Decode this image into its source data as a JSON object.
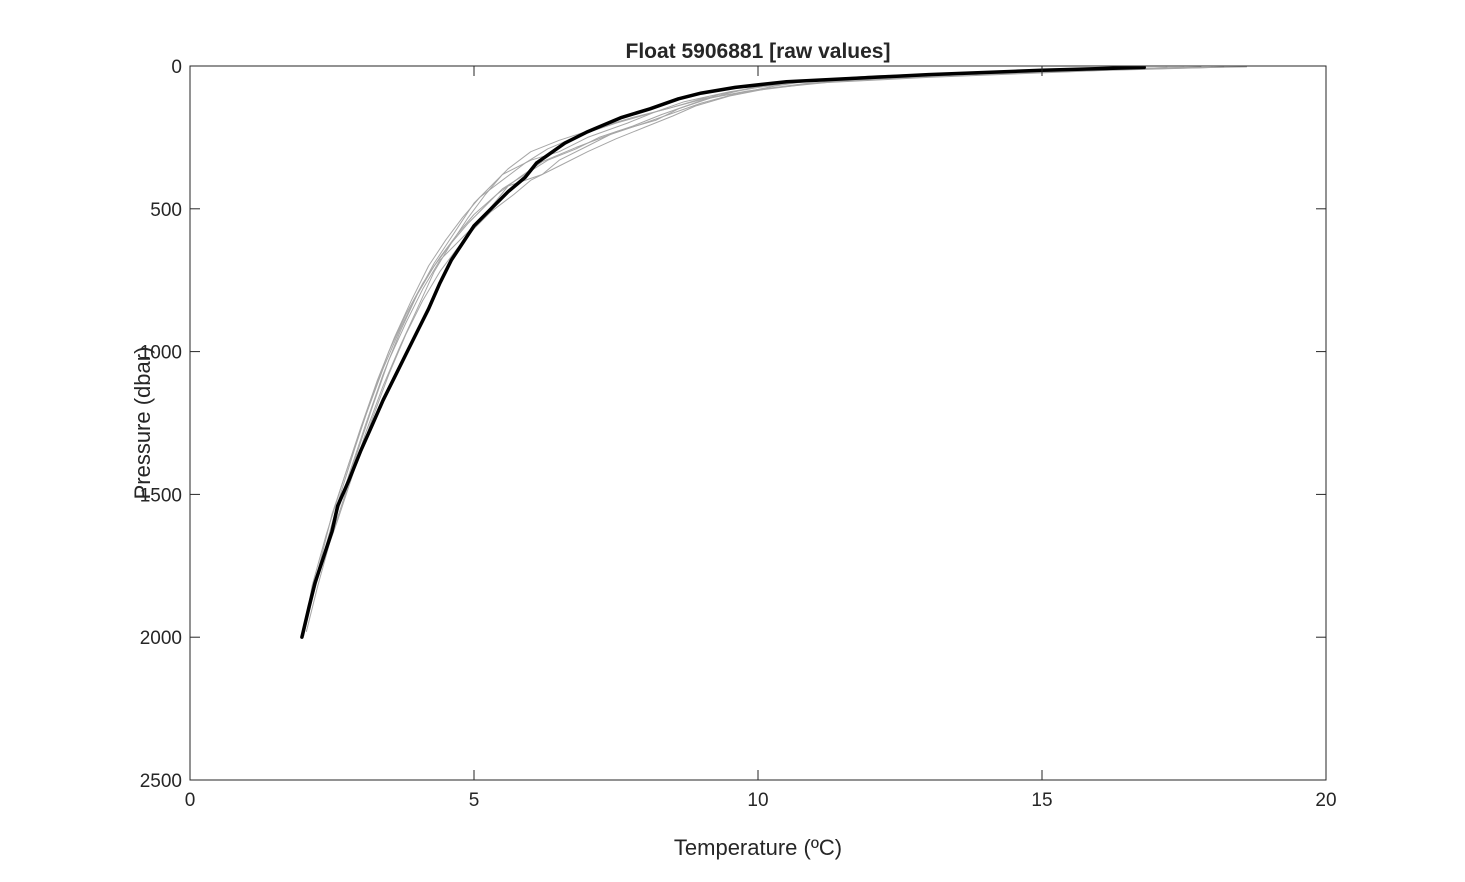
{
  "chart_data": {
    "type": "line",
    "title": "Float 5906881  [raw values]",
    "xlabel": "Temperature  (ºC)",
    "ylabel": "Pressure (dbar)",
    "xlim": [
      0,
      20
    ],
    "ylim": [
      0,
      2500
    ],
    "y_reversed": true,
    "grid": false,
    "legend": "none",
    "x_ticks": [
      0,
      5,
      10,
      15,
      20
    ],
    "y_ticks": [
      0,
      500,
      1000,
      1500,
      2000,
      2500
    ],
    "x_tick_labels": [
      "0",
      "5",
      "10",
      "15",
      "20"
    ],
    "y_tick_labels": [
      "0",
      "500",
      "1000",
      "1500",
      "2000",
      "2500"
    ],
    "colors": {
      "background_profiles": "#a6a6a6",
      "highlight_profile": "#000000",
      "axes": "#262626"
    },
    "series": [
      {
        "role": "highlight",
        "x": [
          16.8,
          15.0,
          13.0,
          11.5,
          10.5,
          9.6,
          9.0,
          8.6,
          8.1,
          7.6,
          7.0,
          6.6,
          6.1,
          5.9,
          5.6,
          5.3,
          5.0,
          4.8,
          4.6,
          4.4,
          4.2,
          4.0,
          3.8,
          3.6,
          3.4,
          3.2,
          3.0,
          2.8,
          2.6,
          2.5,
          2.35,
          2.2,
          2.1,
          1.97
        ],
        "y": [
          5,
          15,
          30,
          45,
          55,
          75,
          95,
          115,
          150,
          180,
          230,
          270,
          340,
          390,
          440,
          500,
          560,
          620,
          680,
          760,
          850,
          930,
          1010,
          1090,
          1170,
          1260,
          1350,
          1450,
          1540,
          1630,
          1720,
          1810,
          1890,
          2000
        ]
      },
      {
        "role": "background",
        "x": [
          18.0,
          15.0,
          12.0,
          10.5,
          9.5,
          8.7,
          8.2,
          7.7,
          7.0,
          6.5,
          6.0,
          5.5,
          5.2,
          4.9,
          4.6,
          4.3,
          4.0,
          3.7,
          3.4,
          3.1,
          2.8,
          2.5,
          2.25,
          2.05
        ],
        "y": [
          5,
          20,
          35,
          60,
          90,
          125,
          160,
          200,
          250,
          300,
          330,
          380,
          450,
          530,
          620,
          720,
          850,
          980,
          1120,
          1280,
          1460,
          1640,
          1820,
          1980
        ]
      },
      {
        "role": "background",
        "x": [
          17.5,
          14.5,
          12.0,
          10.5,
          9.8,
          9.2,
          8.6,
          8.2,
          7.5,
          7.0,
          6.5,
          6.2,
          5.6,
          5.4,
          5.1,
          4.8,
          4.4,
          4.1,
          3.8,
          3.5,
          3.2,
          2.9,
          2.6,
          2.3,
          2.1,
          1.98
        ],
        "y": [
          5,
          18,
          35,
          55,
          80,
          110,
          150,
          190,
          230,
          280,
          330,
          380,
          420,
          470,
          540,
          600,
          680,
          780,
          900,
          1030,
          1200,
          1380,
          1560,
          1740,
          1900,
          1995
        ]
      },
      {
        "role": "background",
        "x": [
          18.6,
          16.0,
          13.0,
          11.0,
          10.0,
          9.3,
          8.8,
          8.3,
          7.8,
          7.2,
          6.8,
          6.3,
          5.9,
          5.5,
          5.2,
          4.9,
          4.6,
          4.3,
          4.0,
          3.7,
          3.4,
          3.1,
          2.8,
          2.5,
          2.3,
          2.1,
          2.0
        ],
        "y": [
          3,
          12,
          30,
          50,
          75,
          100,
          135,
          170,
          210,
          250,
          290,
          330,
          380,
          430,
          490,
          550,
          620,
          700,
          800,
          920,
          1060,
          1220,
          1390,
          1570,
          1730,
          1880,
          1990
        ]
      },
      {
        "role": "background",
        "x": [
          17.2,
          15.5,
          13.0,
          11.0,
          10.0,
          9.0,
          8.4,
          7.8,
          7.2,
          6.5,
          6.0,
          5.6,
          5.3,
          5.0,
          4.8,
          4.6,
          4.3,
          4.0,
          3.7,
          3.4,
          3.1,
          2.8,
          2.5,
          2.2,
          2.0
        ],
        "y": [
          5,
          20,
          40,
          60,
          85,
          115,
          150,
          180,
          215,
          260,
          300,
          360,
          420,
          480,
          540,
          600,
          690,
          800,
          930,
          1080,
          1250,
          1430,
          1620,
          1810,
          1995
        ]
      },
      {
        "role": "background",
        "x": [
          18.2,
          16.2,
          13.5,
          11.5,
          10.2,
          9.5,
          8.9,
          8.5,
          8.0,
          7.5,
          7.0,
          6.5,
          6.0,
          5.7,
          5.3,
          5.0,
          4.7,
          4.4,
          4.1,
          3.8,
          3.5,
          3.2,
          2.9,
          2.6,
          2.3,
          2.1,
          1.97
        ],
        "y": [
          4,
          15,
          32,
          52,
          78,
          105,
          140,
          175,
          215,
          255,
          300,
          350,
          400,
          450,
          510,
          570,
          640,
          720,
          820,
          940,
          1080,
          1240,
          1410,
          1590,
          1760,
          1900,
          1998
        ]
      },
      {
        "role": "background",
        "x": [
          16.5,
          14.0,
          12.0,
          10.8,
          9.8,
          9.0,
          8.3,
          7.5,
          6.9,
          6.3,
          5.9,
          5.5,
          5.1,
          4.8,
          4.5,
          4.2,
          3.9,
          3.6,
          3.3,
          3.0,
          2.7,
          2.4,
          2.15,
          1.99
        ],
        "y": [
          6,
          22,
          42,
          62,
          88,
          118,
          155,
          200,
          240,
          290,
          340,
          400,
          460,
          530,
          610,
          700,
          820,
          950,
          1100,
          1270,
          1450,
          1640,
          1820,
          1995
        ]
      },
      {
        "role": "background",
        "x": [
          17.8,
          15.2,
          12.5,
          11.0,
          10.3,
          9.6,
          9.0,
          8.5,
          8.0,
          7.4,
          6.8,
          6.2,
          5.8,
          5.4,
          5.0,
          4.7,
          4.4,
          4.1,
          3.8,
          3.5,
          3.2,
          2.9,
          2.6,
          2.35,
          2.15,
          2.0
        ],
        "y": [
          4,
          16,
          34,
          50,
          70,
          98,
          130,
          165,
          200,
          240,
          285,
          335,
          390,
          450,
          520,
          590,
          670,
          760,
          870,
          1000,
          1160,
          1340,
          1530,
          1710,
          1870,
          1995
        ]
      }
    ]
  }
}
